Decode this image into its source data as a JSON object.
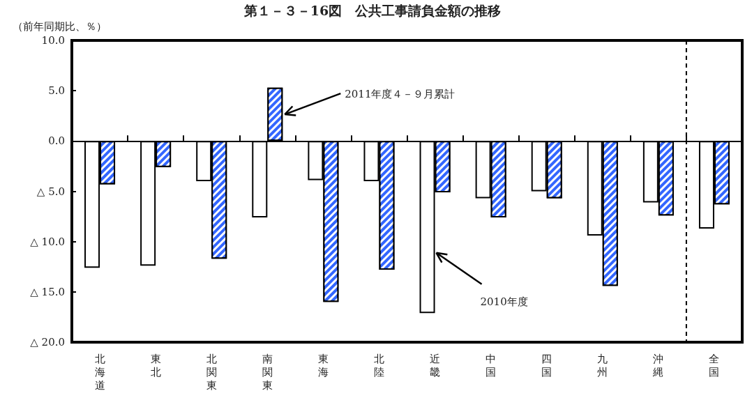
{
  "chart_data": {
    "type": "bar",
    "title": "第１－３－16図　公共工事請負金額の推移",
    "ylabel": "（前年同期比、％）",
    "categories": [
      "北海道",
      "東北",
      "北関東",
      "南関東",
      "東海",
      "北陸",
      "近畿",
      "中国",
      "四国",
      "九州",
      "沖縄",
      "全国"
    ],
    "series": [
      {
        "name": "2010年度",
        "color": "#ffffff",
        "values": [
          -12.6,
          -12.4,
          -4.0,
          -7.6,
          -3.9,
          -4.0,
          -17.1,
          -5.7,
          -5.0,
          -9.4,
          -6.1,
          -8.7
        ]
      },
      {
        "name": "2011年度４－９月累計",
        "color": "#3366ff",
        "values": [
          -4.3,
          -2.6,
          -11.7,
          5.3,
          -16.0,
          -12.8,
          -5.1,
          -7.6,
          -5.7,
          -14.4,
          -7.4,
          -6.3
        ]
      }
    ],
    "ylim": [
      -20,
      10
    ],
    "yticks": [
      {
        "value": -20,
        "label": "△ 20.0"
      },
      {
        "value": -15,
        "label": "△ 15.0"
      },
      {
        "value": -10,
        "label": "△ 10.0"
      },
      {
        "value": -5,
        "label": "△ 5.0"
      },
      {
        "value": 0,
        "label": "0.0"
      },
      {
        "value": 5,
        "label": "5.0"
      },
      {
        "value": 10,
        "label": "10.0"
      }
    ],
    "ref_lines": [
      {
        "axis": "x",
        "value": "全国",
        "line_style": "dashed",
        "color": "#000000"
      }
    ],
    "grid": false,
    "legend": false
  }
}
